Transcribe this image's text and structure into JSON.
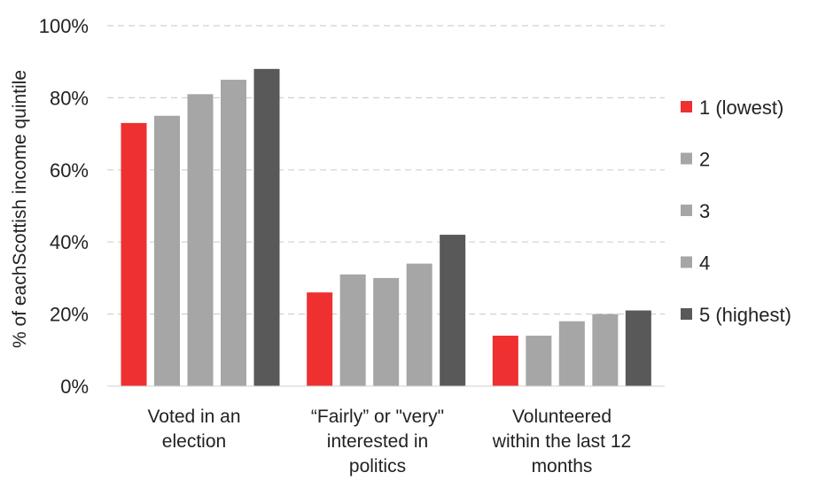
{
  "chart_data": {
    "type": "bar",
    "title": "",
    "xlabel": "",
    "ylabel": "% of eachScottish  income quintile",
    "ylim": [
      0,
      100
    ],
    "yticks": [
      "0%",
      "20%",
      "40%",
      "60%",
      "80%",
      "100%"
    ],
    "grid": "horizontal dashed",
    "legend_position": "right",
    "categories": [
      [
        "Voted in an",
        "election"
      ],
      [
        "“Fairly”  or \"very\"",
        "interested  in",
        "politics"
      ],
      [
        "Volunteered",
        "within the last 12",
        "months"
      ]
    ],
    "series": [
      {
        "name": "1 (lowest)",
        "color": "#ee3030",
        "values": [
          73,
          26,
          14
        ]
      },
      {
        "name": "2",
        "color": "#a6a6a6",
        "values": [
          75,
          31,
          14
        ]
      },
      {
        "name": "3",
        "color": "#a6a6a6",
        "values": [
          81,
          30,
          18
        ]
      },
      {
        "name": "4",
        "color": "#a6a6a6",
        "values": [
          85,
          34,
          20
        ]
      },
      {
        "name": "5 (highest)",
        "color": "#595959",
        "values": [
          88,
          42,
          21
        ]
      }
    ]
  }
}
